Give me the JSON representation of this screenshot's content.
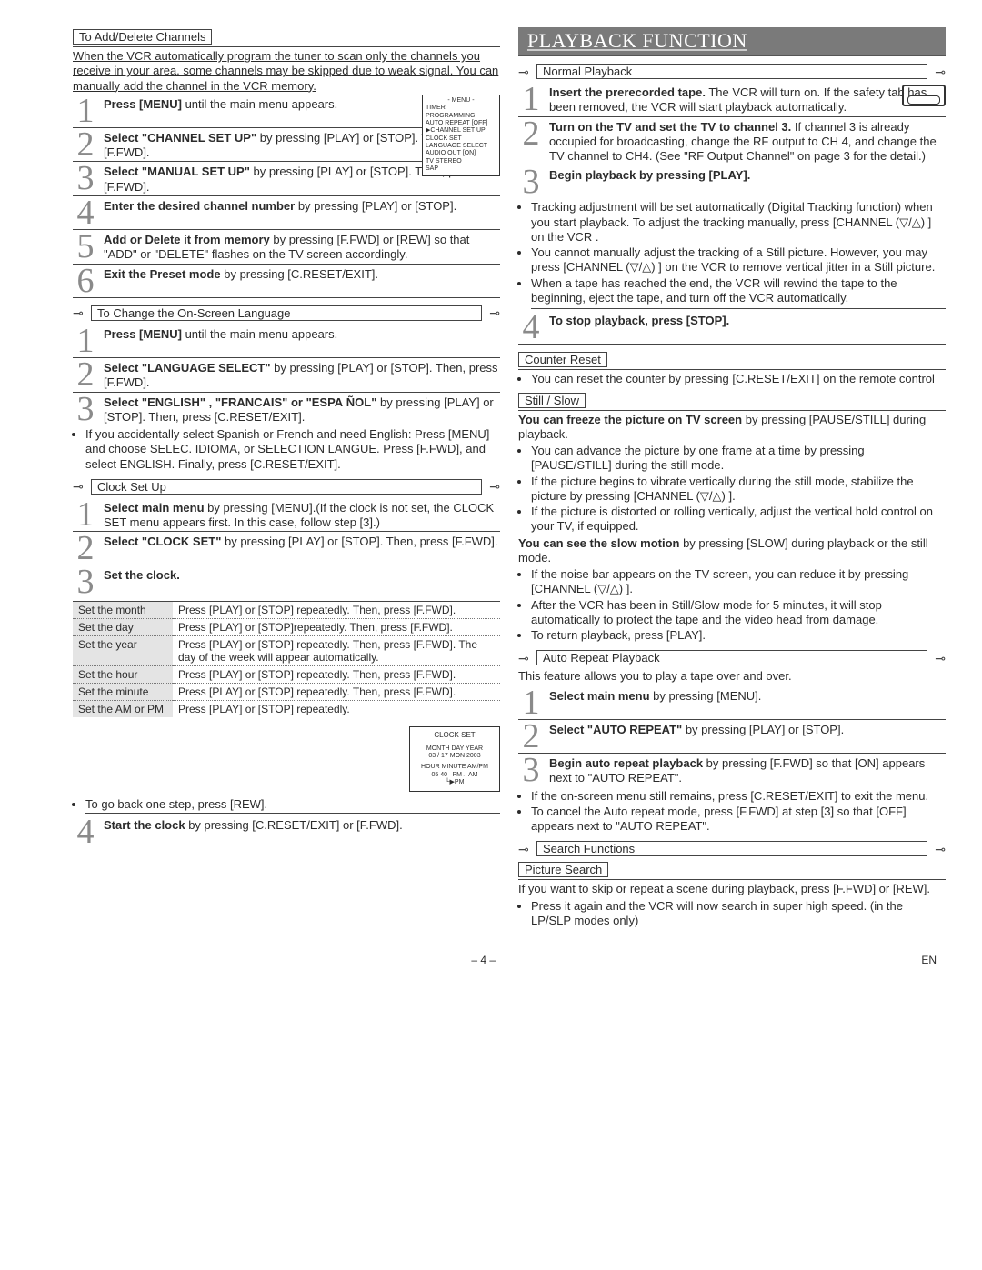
{
  "page_number": "– 4 –",
  "page_lang": "EN",
  "left": {
    "add_delete": {
      "heading": "To Add/Delete Channels",
      "intro": "When the VCR automatically program the tuner to scan only the channels you receive in your area, some channels may be skipped due to weak signal. You can manually add the channel in the VCR memory.",
      "steps": [
        {
          "n": "1",
          "body": "<b>Press [MENU]</b> until the main menu appears."
        },
        {
          "n": "2",
          "body": "<b>Select \"CHANNEL SET UP\"</b> by pressing [PLAY] or [STOP]. Then, press [F.FWD]."
        },
        {
          "n": "3",
          "body": "<b>Select \"MANUAL SET UP\"</b> by pressing [PLAY] or [STOP]. Then, press [F.FWD]."
        },
        {
          "n": "4",
          "body": "<b>Enter the desired channel number</b> by pressing [PLAY] or [STOP]."
        },
        {
          "n": "5",
          "body": "<b>Add or Delete it from memory</b> by pressing [F.FWD] or [REW] so that \"ADD\" or \"DELETE\" flashes on the TV screen accordingly."
        },
        {
          "n": "6",
          "body": "<b>Exit the Preset mode</b> by pressing [C.RESET/EXIT]."
        }
      ],
      "menu_box": {
        "title": "- MENU -",
        "lines": [
          "TIMER PROGRAMMING",
          "AUTO REPEAT    [OFF]",
          "▶CHANNEL SET UP",
          "CLOCK SET",
          "LANGUAGE SELECT",
          "AUDIO OUT        [ON]",
          "TV STEREO",
          "SAP"
        ]
      }
    },
    "lang": {
      "heading": "To Change the On-Screen Language",
      "steps": [
        {
          "n": "1",
          "body": "<b>Press [MENU]</b> until the main menu appears."
        },
        {
          "n": "2",
          "body": "<b>Select \"LANGUAGE SELECT\"</b> by pressing [PLAY] or [STOP]. Then, press [F.FWD]."
        },
        {
          "n": "3",
          "body": "<b>Select \"ENGLISH\" , \"FRANCAIS\" or \"ESPA&nbsp;ÑOL\"</b> by pressing [PLAY] or [STOP]. Then, press [C.RESET/EXIT]."
        }
      ],
      "note": "If you accidentally select Spanish or French and need English: Press [MENU] and choose SELEC. IDIOMA, or SELECTION LANGUE. Press [F.FWD], and select ENGLISH. Finally, press [C.RESET/EXIT]."
    },
    "clock": {
      "heading": "Clock Set Up",
      "steps": [
        {
          "n": "1",
          "body": "<b>Select main menu</b> by pressing [MENU].(If the clock is not set, the CLOCK SET menu appears first. In this case, follow step [3].)"
        },
        {
          "n": "2",
          "body": "<b>Select \"CLOCK SET\"</b> by pressing [PLAY] or [STOP]. Then, press [F.FWD]."
        },
        {
          "n": "3",
          "body": "<b>Set the clock.</b>"
        }
      ],
      "rows": [
        {
          "label": "Set the month",
          "text": "Press [PLAY] or [STOP] repeatedly. Then, press [F.FWD]."
        },
        {
          "label": "Set the day",
          "text": "Press [PLAY] or [STOP]repeatedly. Then, press [F.FWD]."
        },
        {
          "label": "Set the year",
          "text": "Press [PLAY] or [STOP] repeatedly. Then, press [F.FWD]. The day of the week will appear automatically."
        },
        {
          "label": "Set the hour",
          "text": "Press [PLAY] or [STOP] repeatedly. Then, press [F.FWD]."
        },
        {
          "label": "Set the minute",
          "text": "Press [PLAY] or [STOP] repeatedly. Then, press [F.FWD]."
        },
        {
          "label": "Set the AM or PM",
          "text": "Press [PLAY] or [STOP] repeatedly."
        }
      ],
      "clk_box": {
        "title": "CLOCK SET",
        "line1": "MONTH   DAY        YEAR",
        "line2": "03   /  17    MON   2003",
        "line3": "HOUR   MINUTE   AM/PM",
        "line4": "05      40      ⎯PM←AM",
        "line5": "               └▶PM"
      },
      "back": "To go back one step, press [REW].",
      "step4": {
        "n": "4",
        "body": "<b>Start the clock</b> by pressing [C.RESET/EXIT] or [F.FWD]."
      }
    }
  },
  "right": {
    "banner": "PLAYBACK FUNCTION",
    "normal": {
      "heading": "Normal Playback",
      "steps": [
        {
          "n": "1",
          "body": "<b>Insert the prerecorded tape.</b> The VCR will turn on. If the safety tab has been removed, the VCR will start playback automatically."
        },
        {
          "n": "2",
          "body": "<b>Turn on the TV and set the TV to channel 3.</b> If channel 3 is already occupied for broadcasting, change the RF output to CH 4, and change the TV channel to CH4. (See \"RF Output Channel\" on page 3 for the detail.)"
        },
        {
          "n": "3",
          "body": "<b>Begin playback by pressing [PLAY].</b>"
        }
      ],
      "bullets": [
        "Tracking adjustment will be set automatically (Digital Tracking function) when you start playback. To adjust the tracking manually, press [CHANNEL (▽/△) ] on the VCR .",
        "You cannot manually adjust the tracking of a Still picture. However, you may press [CHANNEL (▽/△) ] on the VCR to remove vertical jitter in a Still picture.",
        "When a tape has reached the end, the VCR will rewind the tape to the beginning, eject the tape, and turn off the VCR automatically."
      ],
      "step4": {
        "n": "4",
        "body": "<b>To stop playback, press [STOP].</b>"
      }
    },
    "counter": {
      "heading": "Counter Reset",
      "text": "You can reset the counter by pressing [C.RESET/EXIT] on the remote control"
    },
    "still": {
      "heading": "Still / Slow",
      "intro": "<b>You can freeze the picture on TV screen</b> by pressing [PAUSE/STILL] during playback.",
      "bullets1": [
        "You can advance the picture by one frame at a time by pressing [PAUSE/STILL] during the still mode.",
        "If the picture begins to vibrate vertically during the still mode, stabilize the picture by pressing [CHANNEL (▽/△) ].",
        "If the picture is distorted or rolling vertically, adjust the vertical hold control on your TV, if equipped."
      ],
      "mid": "<b>You can see the slow motion</b> by pressing [SLOW] during playback or the still mode.",
      "bullets2": [
        "If the noise bar appears on the TV screen, you can reduce it by pressing [CHANNEL (▽/△) ].",
        "After the VCR has been in Still/Slow mode for 5 minutes, it will stop automatically to protect the tape and the video head from damage.",
        "To return playback, press [PLAY]."
      ]
    },
    "auto": {
      "heading": "Auto Repeat Playback",
      "intro": "This feature allows you to play a tape over and over.",
      "steps": [
        {
          "n": "1",
          "body": "<b>Select main menu</b> by pressing [MENU]."
        },
        {
          "n": "2",
          "body": "<b>Select \"AUTO REPEAT\"</b> by pressing [PLAY] or [STOP]."
        },
        {
          "n": "3",
          "body": "<b>Begin auto repeat playback</b> by pressing [F.FWD] so that [ON] appears next to \"AUTO REPEAT\"."
        }
      ],
      "bullets": [
        "If the on-screen menu still remains, press [C.RESET/EXIT] to exit the menu.",
        "To cancel the Auto repeat mode, press [F.FWD] at step [3] so that [OFF] appears next to \"AUTO REPEAT\"."
      ]
    },
    "search": {
      "heading": "Search Functions",
      "sub": "Picture Search",
      "text": "If you want to skip or repeat a scene during playback, press [F.FWD] or [REW].",
      "bullet": "Press it again and the VCR will now search in super high speed. (in the LP/SLP modes only)"
    }
  }
}
